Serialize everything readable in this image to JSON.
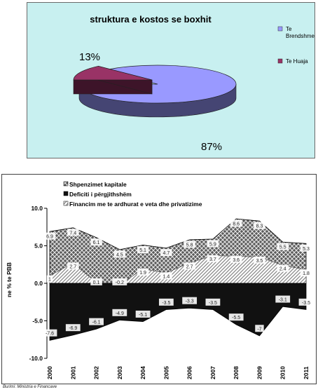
{
  "chart_data": [
    {
      "type": "pie",
      "title": "struktura e kostos se boxhit",
      "slices": [
        {
          "label": "Te Brendshme",
          "value": 87,
          "display": "87%",
          "color": "#9999ff"
        },
        {
          "label": "Te Huaja",
          "value": 13,
          "display": "13%",
          "color": "#993366"
        }
      ],
      "legend": [
        "Te Brendshme",
        "Te Huaja"
      ],
      "legend_position": "right"
    },
    {
      "type": "area",
      "categories": [
        "2000",
        "2001",
        "2002",
        "2003",
        "2004",
        "2005",
        "2006",
        "2007",
        "2008",
        "2009",
        "2010",
        "2011"
      ],
      "series": [
        {
          "name": "Shpenzimet kapitale",
          "pattern": "crosshatch",
          "values": [
            6.9,
            7.4,
            6.1,
            4.5,
            5.1,
            4.7,
            5.8,
            5.9,
            8.6,
            8.3,
            5.5,
            5.3
          ]
        },
        {
          "name": "Deficiti i përgjithshëm",
          "pattern": "solid-black",
          "values": [
            -7.6,
            -6.9,
            -6.1,
            -4.9,
            -5.1,
            -3.5,
            -3.3,
            -3.5,
            -5.5,
            -7.0,
            -3.1,
            -3.5
          ]
        },
        {
          "name": "Financim me te ardhurat e veta dhe privatizime",
          "pattern": "diagonal",
          "values": [
            1.0,
            2.7,
            0.1,
            -0.2,
            1.9,
            1.4,
            2.7,
            3.7,
            3.6,
            3.5,
            2.4,
            1.8
          ]
        }
      ],
      "ylabel": "ne % te PBB",
      "ylim": [
        -10,
        10
      ],
      "yticks": [
        "10.0",
        "5.0",
        "0.0",
        "-5.0",
        "-10.0"
      ],
      "legend_position": "top-left"
    }
  ],
  "source_note": "Burimi: Ministria e Financave"
}
